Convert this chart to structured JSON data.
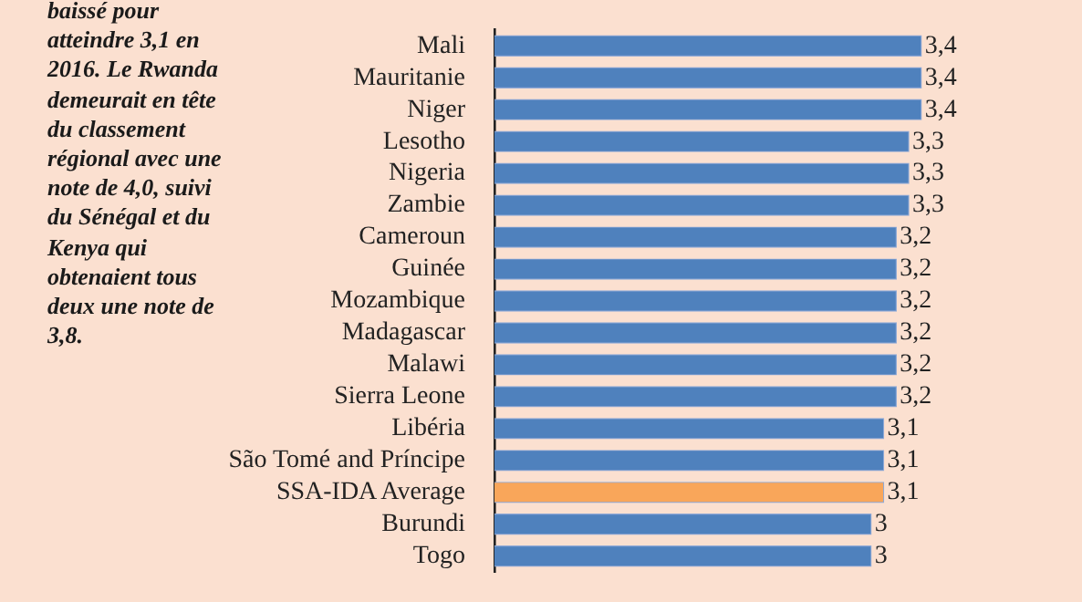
{
  "chart_data": {
    "type": "bar",
    "orientation": "horizontal",
    "categories": [
      "Mali",
      "Mauritanie",
      "Niger",
      "Lesotho",
      "Nigeria",
      "Zambie",
      "Cameroun",
      "Guinée",
      "Mozambique",
      "Madagascar",
      "Malawi",
      "Sierra Leone",
      "Libéria",
      "São Tomé and Príncipe",
      "SSA-IDA Average",
      "Burundi",
      "Togo"
    ],
    "values": [
      3.4,
      3.4,
      3.4,
      3.3,
      3.3,
      3.3,
      3.2,
      3.2,
      3.2,
      3.2,
      3.2,
      3.2,
      3.1,
      3.1,
      3.1,
      3.0,
      3.0
    ],
    "value_labels": [
      "3,4",
      "3,4",
      "3,4",
      "3,3",
      "3,3",
      "3,3",
      "3,2",
      "3,2",
      "3,2",
      "3,2",
      "3,2",
      "3,2",
      "3,1",
      "3,1",
      "3,1",
      "3",
      "3"
    ],
    "colors": [
      "#4f81bd",
      "#4f81bd",
      "#4f81bd",
      "#4f81bd",
      "#4f81bd",
      "#4f81bd",
      "#4f81bd",
      "#4f81bd",
      "#4f81bd",
      "#4f81bd",
      "#4f81bd",
      "#4f81bd",
      "#4f81bd",
      "#4f81bd",
      "#f9a65a",
      "#4f81bd",
      "#4f81bd"
    ],
    "xlim": [
      0,
      4.68
    ],
    "legend": false,
    "tick_labels": "y",
    "annotations": [
      "baissé pour atteindre 3,1 en 2016. Le Rwanda demeurait en tête du classement régional avec une note de 4,0, suivi du Sénégal et du Kenya qui obtenaient tous deux une note de 3,8."
    ]
  }
}
